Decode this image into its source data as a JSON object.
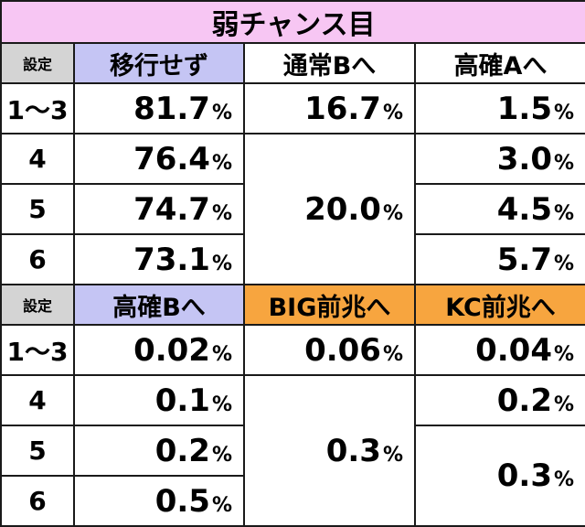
{
  "title": "弱チャンス目",
  "section1": {
    "settei_label": "設定",
    "headers": [
      "移行せず",
      "通常Bへ",
      "高確Aへ"
    ],
    "rows": [
      {
        "setting": "1〜3",
        "col1": "81.7",
        "col2": "16.7",
        "col3": "1.5"
      },
      {
        "setting": "4",
        "col1": "76.4",
        "col3": "3.0"
      },
      {
        "setting": "5",
        "col1": "74.7",
        "col3": "4.5"
      },
      {
        "setting": "6",
        "col1": "73.1",
        "col3": "5.7"
      }
    ],
    "col2_merged": "20.0"
  },
  "section2": {
    "settei_label": "設定",
    "headers": [
      "高確Bへ",
      "BIG前兆へ",
      "KC前兆へ"
    ],
    "rows": [
      {
        "setting": "1〜3",
        "col1": "0.02",
        "col2": "0.06",
        "col3": "0.04"
      },
      {
        "setting": "4",
        "col1": "0.1",
        "col3": "0.2"
      },
      {
        "setting": "5",
        "col1": "0.2"
      },
      {
        "setting": "6",
        "col1": "0.5"
      }
    ],
    "col2_merged": "0.3",
    "col3_merged": "0.3"
  },
  "percent_sign": "%",
  "colors": {
    "title_bg": "#f7c6f3",
    "header_lavender": "#c5c5f4",
    "header_orange": "#f7a53f",
    "settei_bg": "#d4d4d4"
  }
}
